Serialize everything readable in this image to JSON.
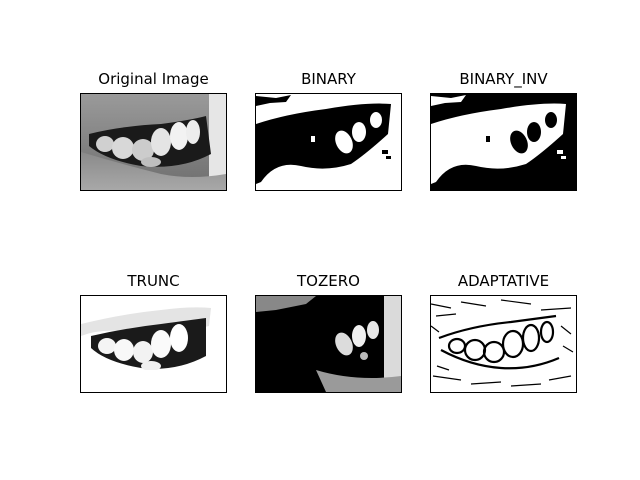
{
  "panels": [
    {
      "id": "original",
      "title": "Original Image"
    },
    {
      "id": "binary",
      "title": "BINARY"
    },
    {
      "id": "binary_inv",
      "title": "BINARY_INV"
    },
    {
      "id": "trunc",
      "title": "TRUNC"
    },
    {
      "id": "tozero",
      "title": "TOZERO"
    },
    {
      "id": "adaptative",
      "title": "ADAPTATIVE"
    }
  ]
}
